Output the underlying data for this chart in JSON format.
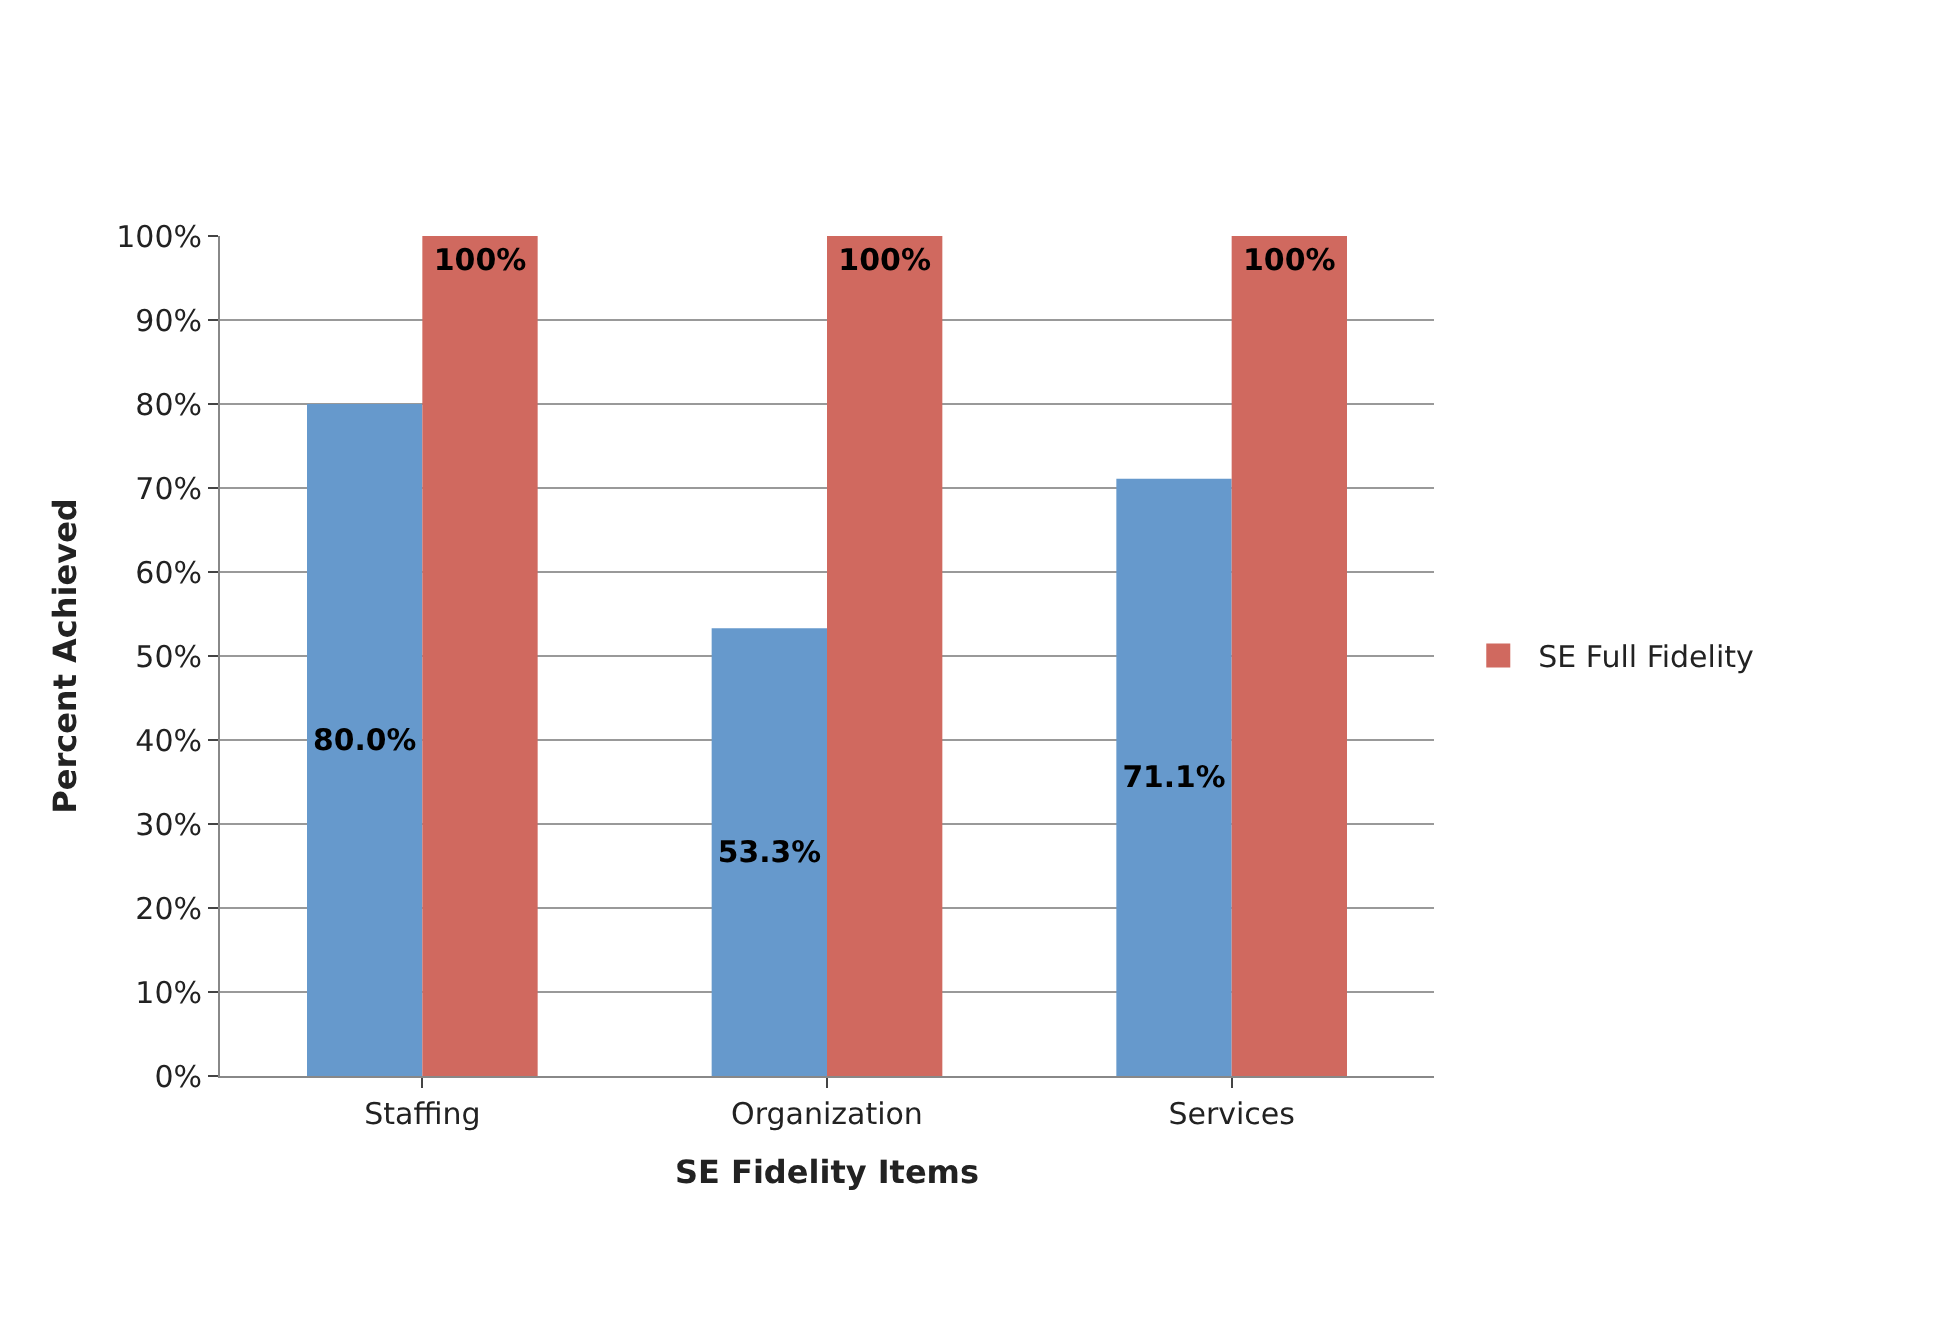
{
  "chart_data": {
    "type": "bar",
    "xlabel": "SE Fidelity Items",
    "ylabel": "Percent Achieved",
    "categories": [
      "Staffing",
      "Organization",
      "Services"
    ],
    "series": [
      {
        "color": "#6699cc",
        "values": [
          80.0,
          53.3,
          71.1
        ],
        "value_labels": [
          "80.0%",
          "53.3%",
          "71.1%"
        ]
      },
      {
        "name": "SE Full Fidelity",
        "color": "#d0695f",
        "values": [
          100,
          100,
          100
        ],
        "value_labels": [
          "100%",
          "100%",
          "100%"
        ]
      }
    ],
    "ylim": [
      0,
      100
    ],
    "yticks": [
      {
        "value": 0,
        "label": "0%"
      },
      {
        "value": 10,
        "label": "10%"
      },
      {
        "value": 20,
        "label": "20%"
      },
      {
        "value": 30,
        "label": "30%"
      },
      {
        "value": 40,
        "label": "40%"
      },
      {
        "value": 50,
        "label": "50%"
      },
      {
        "value": 60,
        "label": "60%"
      },
      {
        "value": 70,
        "label": "70%"
      },
      {
        "value": 80,
        "label": "80%"
      },
      {
        "value": 90,
        "label": "90%"
      },
      {
        "value": 100,
        "label": "100%"
      }
    ],
    "grid": "y",
    "legend": "right"
  }
}
